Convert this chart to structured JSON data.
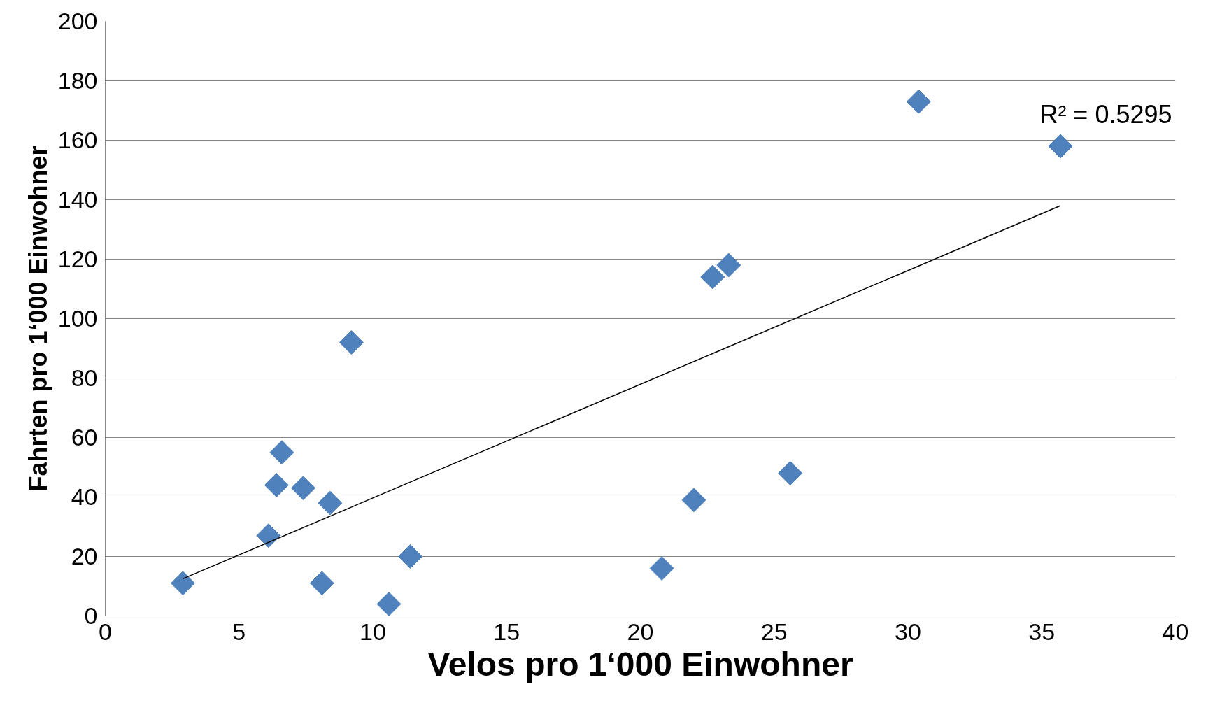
{
  "chart_data": {
    "type": "scatter",
    "xlabel": "Velos pro 1‘000 Einwohner",
    "ylabel": "Fahrten pro 1‘000 Einwohner",
    "xlim": [
      0,
      40
    ],
    "xticks": [
      0,
      5,
      10,
      15,
      20,
      25,
      30,
      35,
      40
    ],
    "ylim": [
      0,
      200
    ],
    "yticks": [
      0,
      20,
      40,
      60,
      80,
      100,
      120,
      140,
      160,
      180,
      200
    ],
    "grid": "y",
    "annotations": [
      "R² = 0.5295"
    ],
    "series": [
      {
        "color": "#4f81bd",
        "marker": "diamond",
        "x": [
          2.9,
          6.1,
          6.4,
          6.6,
          7.4,
          8.1,
          8.4,
          9.2,
          10.6,
          11.4,
          20.8,
          22.0,
          22.7,
          23.3,
          25.6,
          30.4,
          35.7
        ],
        "values": [
          11,
          27,
          44,
          55,
          43,
          11,
          38,
          92,
          4,
          20,
          16,
          39,
          114,
          118,
          48,
          173,
          158
        ]
      },
      {
        "type": "line",
        "marker": "none",
        "color": "#000000",
        "x": [
          2.9,
          35.7
        ],
        "values": [
          12.5,
          138
        ]
      }
    ]
  }
}
